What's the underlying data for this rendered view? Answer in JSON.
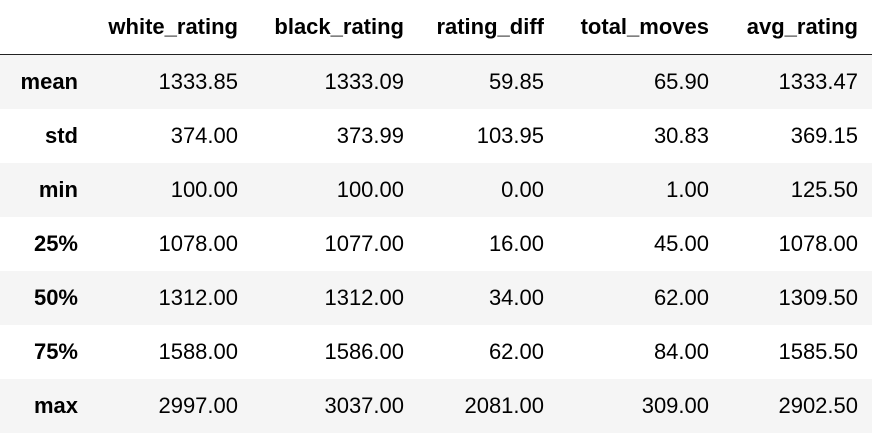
{
  "table": {
    "index_header": "",
    "columns": [
      "white_rating",
      "black_rating",
      "rating_diff",
      "total_moves",
      "avg_rating"
    ],
    "rows": [
      {
        "label": "mean",
        "values": [
          "1333.85",
          "1333.09",
          "59.85",
          "65.90",
          "1333.47"
        ]
      },
      {
        "label": "std",
        "values": [
          "374.00",
          "373.99",
          "103.95",
          "30.83",
          "369.15"
        ]
      },
      {
        "label": "min",
        "values": [
          "100.00",
          "100.00",
          "0.00",
          "1.00",
          "125.50"
        ]
      },
      {
        "label": "25%",
        "values": [
          "1078.00",
          "1077.00",
          "16.00",
          "45.00",
          "1078.00"
        ]
      },
      {
        "label": "50%",
        "values": [
          "1312.00",
          "1312.00",
          "34.00",
          "62.00",
          "1309.50"
        ]
      },
      {
        "label": "75%",
        "values": [
          "1588.00",
          "1586.00",
          "62.00",
          "84.00",
          "1585.50"
        ]
      },
      {
        "label": "max",
        "values": [
          "2997.00",
          "3037.00",
          "2081.00",
          "309.00",
          "2902.50"
        ]
      }
    ]
  },
  "colors": {
    "stripe": "#f5f5f5",
    "background": "#ffffff",
    "text": "#000000",
    "header_rule": "#222222"
  }
}
